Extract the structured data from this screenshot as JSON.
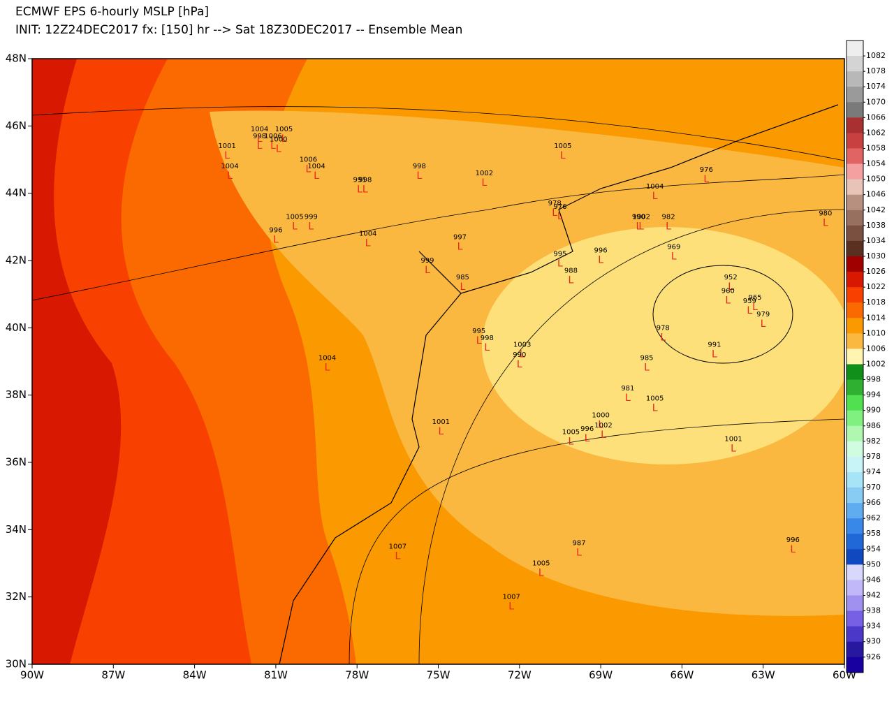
{
  "title": "ECMWF EPS 6-hourly MSLP [hPa]",
  "subtitle": "INIT: 12Z24DEC2017 fx: [150] hr --> Sat 18Z30DEC2017 -- Ensemble Mean",
  "map": {
    "xlim": [
      -90,
      -60
    ],
    "ylim": [
      30,
      48
    ],
    "xticks": [
      {
        "value": -90,
        "label": "90W"
      },
      {
        "value": -87,
        "label": "87W"
      },
      {
        "value": -84,
        "label": "84W"
      },
      {
        "value": -81,
        "label": "81W"
      },
      {
        "value": -78,
        "label": "78W"
      },
      {
        "value": -75,
        "label": "75W"
      },
      {
        "value": -72,
        "label": "72W"
      },
      {
        "value": -69,
        "label": "69W"
      },
      {
        "value": -66,
        "label": "66W"
      },
      {
        "value": -63,
        "label": "63W"
      },
      {
        "value": -60,
        "label": "60W"
      }
    ],
    "yticks": [
      {
        "value": 30,
        "label": "30N"
      },
      {
        "value": 32,
        "label": "32N"
      },
      {
        "value": 34,
        "label": "34N"
      },
      {
        "value": 36,
        "label": "36N"
      },
      {
        "value": 38,
        "label": "38N"
      },
      {
        "value": 40,
        "label": "40N"
      },
      {
        "value": 42,
        "label": "42N"
      },
      {
        "value": 44,
        "label": "44N"
      },
      {
        "value": 46,
        "label": "46N"
      },
      {
        "value": 48,
        "label": "48N"
      }
    ],
    "low_marker": "L",
    "lows": [
      {
        "p": 1001,
        "lon": -82.8,
        "lat": 45.4
      },
      {
        "p": 1004,
        "lon": -82.7,
        "lat": 44.8
      },
      {
        "p": 1004,
        "lon": -81.6,
        "lat": 45.9
      },
      {
        "p": 998,
        "lon": -81.6,
        "lat": 45.7
      },
      {
        "p": 1006,
        "lon": -81.1,
        "lat": 45.7
      },
      {
        "p": 1005,
        "lon": -80.7,
        "lat": 45.9
      },
      {
        "p": 1000,
        "lon": -80.9,
        "lat": 45.6
      },
      {
        "p": 1006,
        "lon": -79.8,
        "lat": 45.0
      },
      {
        "p": 1004,
        "lon": -79.5,
        "lat": 44.8
      },
      {
        "p": 991,
        "lon": -77.9,
        "lat": 44.4
      },
      {
        "p": 998,
        "lon": -77.7,
        "lat": 44.4
      },
      {
        "p": 998,
        "lon": -75.7,
        "lat": 44.8
      },
      {
        "p": 1005,
        "lon": -70.4,
        "lat": 45.4
      },
      {
        "p": 1002,
        "lon": -73.3,
        "lat": 44.6
      },
      {
        "p": 976,
        "lon": -65.1,
        "lat": 44.7
      },
      {
        "p": 1004,
        "lon": -67.0,
        "lat": 44.2
      },
      {
        "p": 978,
        "lon": -70.7,
        "lat": 43.7
      },
      {
        "p": 976,
        "lon": -70.5,
        "lat": 43.6
      },
      {
        "p": 999,
        "lon": -79.7,
        "lat": 43.3
      },
      {
        "p": 1005,
        "lon": -80.3,
        "lat": 43.3
      },
      {
        "p": 996,
        "lon": -81.0,
        "lat": 42.9
      },
      {
        "p": 1004,
        "lon": -77.6,
        "lat": 42.8
      },
      {
        "p": 997,
        "lon": -74.2,
        "lat": 42.7
      },
      {
        "p": 990,
        "lon": -67.6,
        "lat": 43.3
      },
      {
        "p": 1002,
        "lon": -67.5,
        "lat": 43.3
      },
      {
        "p": 982,
        "lon": -66.5,
        "lat": 43.3
      },
      {
        "p": 980,
        "lon": -60.7,
        "lat": 43.4
      },
      {
        "p": 996,
        "lon": -69.0,
        "lat": 42.3
      },
      {
        "p": 969,
        "lon": -66.3,
        "lat": 42.4
      },
      {
        "p": 995,
        "lon": -70.5,
        "lat": 42.2
      },
      {
        "p": 999,
        "lon": -75.4,
        "lat": 42.0
      },
      {
        "p": 988,
        "lon": -70.1,
        "lat": 41.7
      },
      {
        "p": 985,
        "lon": -74.1,
        "lat": 41.5
      },
      {
        "p": 952,
        "lon": -64.2,
        "lat": 41.5
      },
      {
        "p": 960,
        "lon": -64.3,
        "lat": 41.1
      },
      {
        "p": 959,
        "lon": -63.5,
        "lat": 40.8
      },
      {
        "p": 965,
        "lon": -63.3,
        "lat": 40.9
      },
      {
        "p": 979,
        "lon": -63.0,
        "lat": 40.4
      },
      {
        "p": 978,
        "lon": -66.7,
        "lat": 40.0
      },
      {
        "p": 995,
        "lon": -73.5,
        "lat": 39.9
      },
      {
        "p": 998,
        "lon": -73.2,
        "lat": 39.7
      },
      {
        "p": 991,
        "lon": -64.8,
        "lat": 39.5
      },
      {
        "p": 1003,
        "lon": -71.9,
        "lat": 39.5
      },
      {
        "p": 990,
        "lon": -72.0,
        "lat": 39.2
      },
      {
        "p": 985,
        "lon": -67.3,
        "lat": 39.1
      },
      {
        "p": 1004,
        "lon": -79.1,
        "lat": 39.1
      },
      {
        "p": 981,
        "lon": -68.0,
        "lat": 38.2
      },
      {
        "p": 1005,
        "lon": -67.0,
        "lat": 37.9
      },
      {
        "p": 1001,
        "lon": -74.9,
        "lat": 37.2
      },
      {
        "p": 1000,
        "lon": -69.0,
        "lat": 37.4
      },
      {
        "p": 1002,
        "lon": -68.9,
        "lat": 37.1
      },
      {
        "p": 1005,
        "lon": -70.1,
        "lat": 36.9
      },
      {
        "p": 996,
        "lon": -69.5,
        "lat": 37.0
      },
      {
        "p": 1001,
        "lon": -64.1,
        "lat": 36.7
      },
      {
        "p": 1007,
        "lon": -76.5,
        "lat": 33.5
      },
      {
        "p": 987,
        "lon": -69.8,
        "lat": 33.6
      },
      {
        "p": 996,
        "lon": -61.9,
        "lat": 33.7
      },
      {
        "p": 1005,
        "lon": -71.2,
        "lat": 33.0
      },
      {
        "p": 1007,
        "lon": -72.3,
        "lat": 32.0
      }
    ]
  },
  "colorbar": {
    "levels": [
      1082,
      1078,
      1074,
      1070,
      1066,
      1062,
      1058,
      1054,
      1050,
      1046,
      1042,
      1038,
      1034,
      1030,
      1026,
      1022,
      1018,
      1014,
      1010,
      1006,
      1002,
      998,
      994,
      990,
      986,
      982,
      978,
      974,
      970,
      966,
      962,
      958,
      954,
      950,
      946,
      942,
      938,
      934,
      930,
      926
    ],
    "colors": [
      "#eeeeee",
      "#d4d4d4",
      "#b8b8b8",
      "#9a9a9a",
      "#7a7a7a",
      "#a83030",
      "#c84040",
      "#e06464",
      "#f4a0a0",
      "#e8c4b8",
      "#b89080",
      "#987060",
      "#7a5040",
      "#5a3020",
      "#a00000",
      "#d81800",
      "#f84000",
      "#fa6a00",
      "#fa9a00",
      "#fbb840",
      "#fff4b0",
      "#10901a",
      "#30b030",
      "#50e050",
      "#80f080",
      "#b0f8b0",
      "#d0fce0",
      "#c8f4f8",
      "#a8e4f8",
      "#88ccf4",
      "#60acf0",
      "#3888e8",
      "#2068d8",
      "#1048c0",
      "#d8d8fc",
      "#c0b8f8",
      "#a090f0",
      "#7860e4",
      "#4c38c8",
      "#2818a0",
      "#1800a0"
    ]
  }
}
